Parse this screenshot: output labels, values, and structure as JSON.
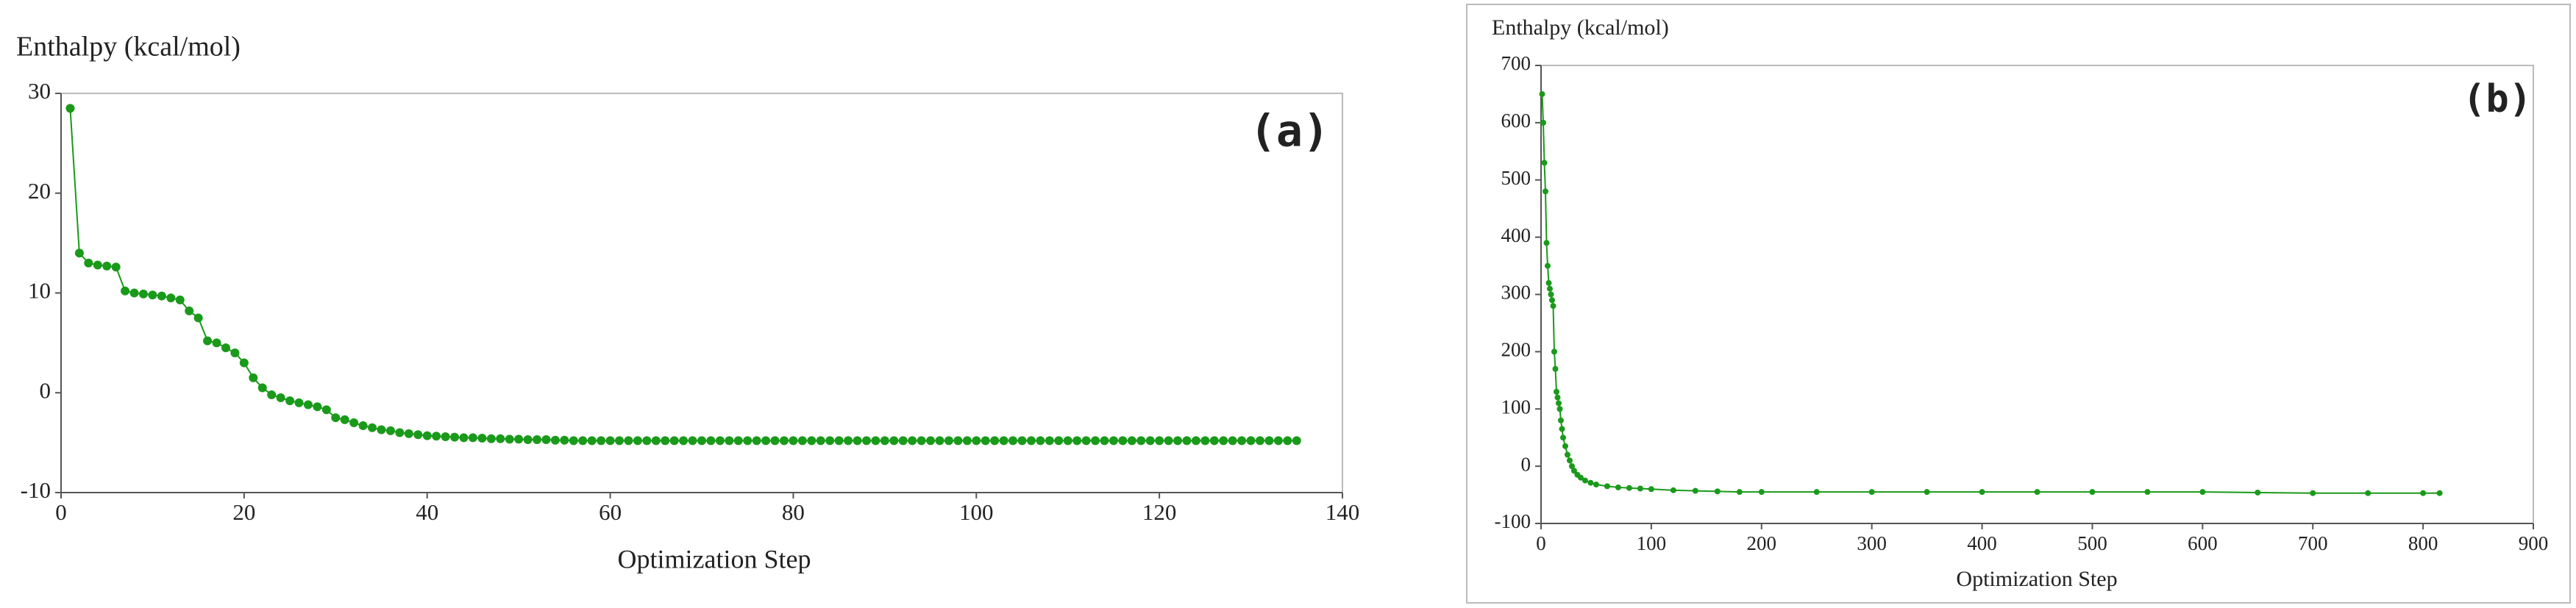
{
  "chart_data": [
    {
      "type": "line",
      "ylabel": "Enthalpy (kcal/mol)",
      "xlabel": "Optimization Step",
      "annotation": "(a)",
      "color": "#1a9a1a",
      "grid": false,
      "xlim": [
        0,
        140
      ],
      "xticks": [
        0,
        20,
        40,
        60,
        80,
        100,
        120,
        140
      ],
      "ylim": [
        -10,
        30
      ],
      "yticks": [
        -10,
        0,
        10,
        20,
        30
      ],
      "series": [
        {
          "name": "Enthalpy",
          "color": "#1a9a1a",
          "x": [
            1,
            2,
            3,
            4,
            5,
            6,
            7,
            8,
            9,
            10,
            11,
            12,
            13,
            14,
            15,
            16,
            17,
            18,
            19,
            20,
            21,
            22,
            23,
            24,
            25,
            26,
            27,
            28,
            29,
            30,
            31,
            32,
            33,
            34,
            35,
            36,
            37,
            38,
            39,
            40,
            41,
            42,
            43,
            44,
            45,
            46,
            47,
            48,
            49,
            50,
            51,
            52,
            53,
            54,
            55,
            56,
            57,
            58,
            59,
            60,
            61,
            62,
            63,
            64,
            65,
            66,
            67,
            68,
            69,
            70,
            71,
            72,
            73,
            74,
            75,
            76,
            77,
            78,
            79,
            80,
            81,
            82,
            83,
            84,
            85,
            86,
            87,
            88,
            89,
            90,
            91,
            92,
            93,
            94,
            95,
            96,
            97,
            98,
            99,
            100,
            101,
            102,
            103,
            104,
            105,
            106,
            107,
            108,
            109,
            110,
            111,
            112,
            113,
            114,
            115,
            116,
            117,
            118,
            119,
            120,
            121,
            122,
            123,
            124,
            125,
            126,
            127,
            128,
            129,
            130,
            131,
            132,
            133,
            134,
            135
          ],
          "values": [
            28.5,
            14,
            13,
            12.8,
            12.7,
            12.6,
            10.2,
            10,
            9.9,
            9.8,
            9.7,
            9.5,
            9.3,
            8.2,
            7.5,
            5.2,
            5,
            4.5,
            4,
            3,
            1.5,
            0.5,
            -0.2,
            -0.5,
            -0.8,
            -1,
            -1.2,
            -1.4,
            -1.7,
            -2.5,
            -2.7,
            -3,
            -3.3,
            -3.5,
            -3.7,
            -3.8,
            -4,
            -4.1,
            -4.2,
            -4.3,
            -4.35,
            -4.4,
            -4.45,
            -4.5,
            -4.5,
            -4.55,
            -4.6,
            -4.6,
            -4.65,
            -4.65,
            -4.7,
            -4.7,
            -4.7,
            -4.75,
            -4.75,
            -4.8,
            -4.8,
            -4.8,
            -4.8,
            -4.8,
            -4.8,
            -4.8,
            -4.8,
            -4.8,
            -4.8,
            -4.8,
            -4.8,
            -4.8,
            -4.8,
            -4.8,
            -4.8,
            -4.8,
            -4.8,
            -4.8,
            -4.8,
            -4.8,
            -4.8,
            -4.8,
            -4.8,
            -4.8,
            -4.8,
            -4.8,
            -4.8,
            -4.8,
            -4.8,
            -4.8,
            -4.8,
            -4.8,
            -4.8,
            -4.8,
            -4.8,
            -4.8,
            -4.8,
            -4.8,
            -4.8,
            -4.8,
            -4.8,
            -4.8,
            -4.8,
            -4.8,
            -4.8,
            -4.8,
            -4.8,
            -4.8,
            -4.8,
            -4.8,
            -4.8,
            -4.8,
            -4.8,
            -4.8,
            -4.8,
            -4.8,
            -4.8,
            -4.8,
            -4.8,
            -4.8,
            -4.8,
            -4.8,
            -4.8,
            -4.8,
            -4.8,
            -4.8,
            -4.8,
            -4.8,
            -4.8,
            -4.8,
            -4.8,
            -4.8,
            -4.8,
            -4.8,
            -4.8,
            -4.8,
            -4.8,
            -4.8,
            -4.8
          ]
        }
      ]
    },
    {
      "type": "line",
      "ylabel": "Enthalpy (kcal/mol)",
      "xlabel": "Optimization Step",
      "annotation": "(b)",
      "color": "#1a9a1a",
      "grid": false,
      "xlim": [
        0,
        900
      ],
      "xticks": [
        0,
        100,
        200,
        300,
        400,
        500,
        600,
        700,
        800,
        900
      ],
      "ylim": [
        -100,
        700
      ],
      "yticks": [
        -100,
        0,
        100,
        200,
        300,
        400,
        500,
        600,
        700
      ],
      "series": [
        {
          "name": "Enthalpy",
          "color": "#1a9a1a",
          "x": [
            1,
            2,
            3,
            4,
            5,
            6,
            7,
            8,
            9,
            10,
            11,
            12,
            13,
            14,
            15,
            16,
            17,
            18,
            19,
            20,
            22,
            24,
            26,
            28,
            30,
            33,
            36,
            40,
            45,
            50,
            60,
            70,
            80,
            90,
            100,
            120,
            140,
            160,
            180,
            200,
            250,
            300,
            350,
            400,
            450,
            500,
            550,
            600,
            650,
            700,
            750,
            800,
            815
          ],
          "values": [
            650,
            600,
            530,
            480,
            390,
            350,
            320,
            310,
            300,
            290,
            280,
            200,
            170,
            130,
            120,
            110,
            100,
            80,
            65,
            50,
            35,
            20,
            10,
            0,
            -8,
            -15,
            -20,
            -25,
            -29,
            -32,
            -35,
            -37,
            -38,
            -39,
            -40,
            -42,
            -43,
            -44,
            -45,
            -45,
            -45,
            -45,
            -45,
            -45,
            -45,
            -45,
            -45,
            -45,
            -46,
            -47,
            -47,
            -47,
            -47
          ]
        }
      ]
    }
  ]
}
